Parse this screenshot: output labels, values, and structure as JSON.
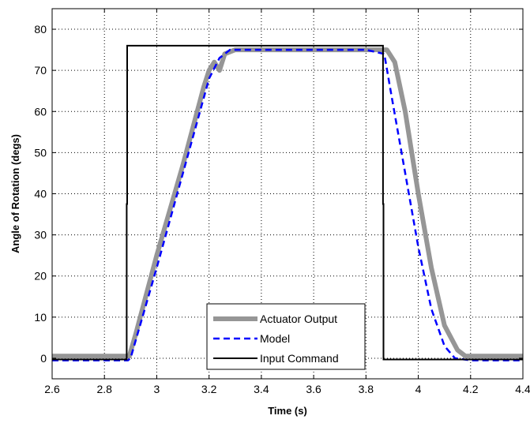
{
  "chart_data": {
    "type": "line",
    "title": "",
    "xlabel": "Time (s)",
    "ylabel": "Angle of Rotation (degs)",
    "xlim": [
      2.6,
      4.4
    ],
    "ylim": [
      -5,
      85
    ],
    "xticks": [
      2.6,
      2.8,
      3.0,
      3.2,
      3.4,
      3.6,
      3.8,
      4.0,
      4.2,
      4.4
    ],
    "xtick_labels": [
      "2.6",
      "2.8",
      "3",
      "3.2",
      "3.4",
      "3.6",
      "3.8",
      "4",
      "4.2",
      "4.4"
    ],
    "yticks": [
      0,
      10,
      20,
      30,
      40,
      50,
      60,
      70,
      80
    ],
    "ytick_labels": [
      "0",
      "10",
      "20",
      "30",
      "40",
      "50",
      "60",
      "70",
      "80"
    ],
    "grid": true,
    "grid_style": "dotted",
    "legend_position": "bottom-center",
    "series": [
      {
        "name": "Actuator Output",
        "color": "#969696",
        "style": "solid-thick",
        "x": [
          2.6,
          2.88,
          2.895,
          2.92,
          3.0,
          3.1,
          3.18,
          3.2,
          3.22,
          3.24,
          3.26,
          3.3,
          3.4,
          3.6,
          3.8,
          3.88,
          3.91,
          3.95,
          4.0,
          4.05,
          4.1,
          4.15,
          4.18,
          4.25,
          4.4
        ],
        "y": [
          0.5,
          0.5,
          0.5,
          6,
          25,
          47,
          66,
          70,
          72,
          70,
          74,
          75,
          75,
          75,
          75,
          75,
          72,
          60,
          40,
          22,
          8,
          2,
          0.5,
          0.5,
          0.5
        ]
      },
      {
        "name": "Model",
        "color": "#0000ff",
        "style": "dashed",
        "x": [
          2.6,
          2.89,
          2.9,
          3.0,
          3.1,
          3.2,
          3.24,
          3.28,
          3.4,
          3.6,
          3.8,
          3.87,
          3.9,
          3.95,
          4.0,
          4.05,
          4.1,
          4.14,
          4.2,
          4.4
        ],
        "y": [
          -0.5,
          -0.5,
          0,
          22,
          45,
          68,
          73,
          75,
          75,
          75,
          75,
          74,
          63,
          45,
          27,
          12,
          3,
          0,
          -0.5,
          -0.5
        ]
      },
      {
        "name": "Input Command",
        "color": "#000000",
        "style": "solid",
        "x": [
          2.6,
          2.885,
          2.885,
          2.887,
          2.887,
          3.865,
          3.865,
          3.867,
          3.867,
          4.4
        ],
        "y": [
          -0.3,
          -0.3,
          37.5,
          37.5,
          76,
          76,
          37.5,
          37.5,
          -0.3,
          -0.3
        ]
      }
    ]
  }
}
